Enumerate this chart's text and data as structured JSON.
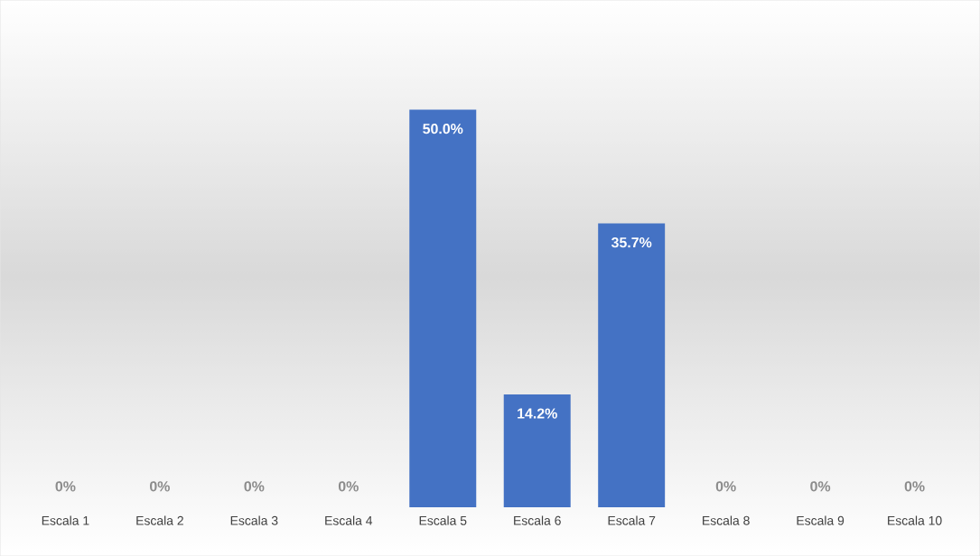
{
  "chart_data": {
    "type": "bar",
    "categories": [
      "Escala 1",
      "Escala 2",
      "Escala 3",
      "Escala 4",
      "Escala 5",
      "Escala 6",
      "Escala 7",
      "Escala 8",
      "Escala 9",
      "Escala 10"
    ],
    "values": [
      0,
      0,
      0,
      0,
      50.0,
      14.2,
      35.7,
      0,
      0,
      0
    ],
    "value_labels": [
      "0%",
      "0%",
      "0%",
      "0%",
      "50.0%",
      "14.2%",
      "35.7%",
      "0%",
      "0%",
      "0%"
    ],
    "color": "#4472c4"
  }
}
